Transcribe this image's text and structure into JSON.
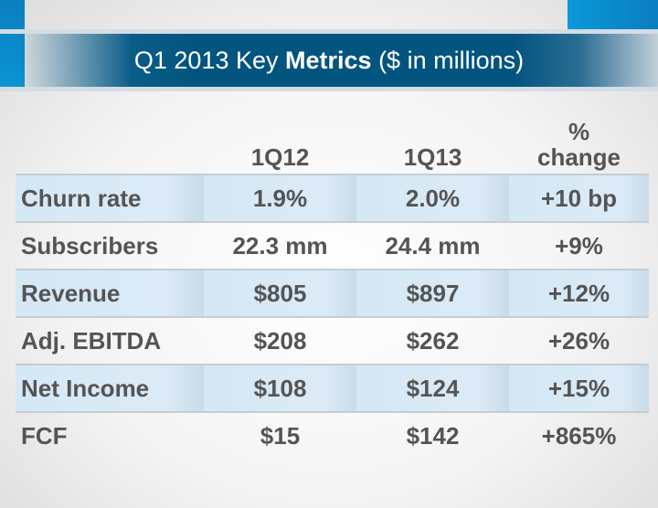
{
  "title": {
    "prefix": "Q1 2013 Key ",
    "bold": "Metrics",
    "suffix": " ($ in millions)"
  },
  "columns": [
    "",
    "1Q12",
    "1Q13",
    "%",
    "change"
  ],
  "rows": [
    {
      "label": "Churn rate",
      "q12": "1.9%",
      "q13": "2.0%",
      "change": "+10 bp"
    },
    {
      "label": "Subscribers",
      "q12": "22.3 mm",
      "q13": "24.4 mm",
      "change": "+9%"
    },
    {
      "label": "Revenue",
      "q12": "$805",
      "q13": "$897",
      "change": "+12%"
    },
    {
      "label": "Adj. EBITDA",
      "q12": "$208",
      "q13": "$262",
      "change": "+26%"
    },
    {
      "label": "Net Income",
      "q12": "$108",
      "q13": "$124",
      "change": "+15%"
    },
    {
      "label": "FCF",
      "q12": "$15",
      "q13": "$142",
      "change": "+865%"
    }
  ],
  "colors": {
    "banner": "#03547f",
    "accent": "#0b96d6",
    "row_highlight": "#d5e8f6",
    "text": "#545454"
  }
}
